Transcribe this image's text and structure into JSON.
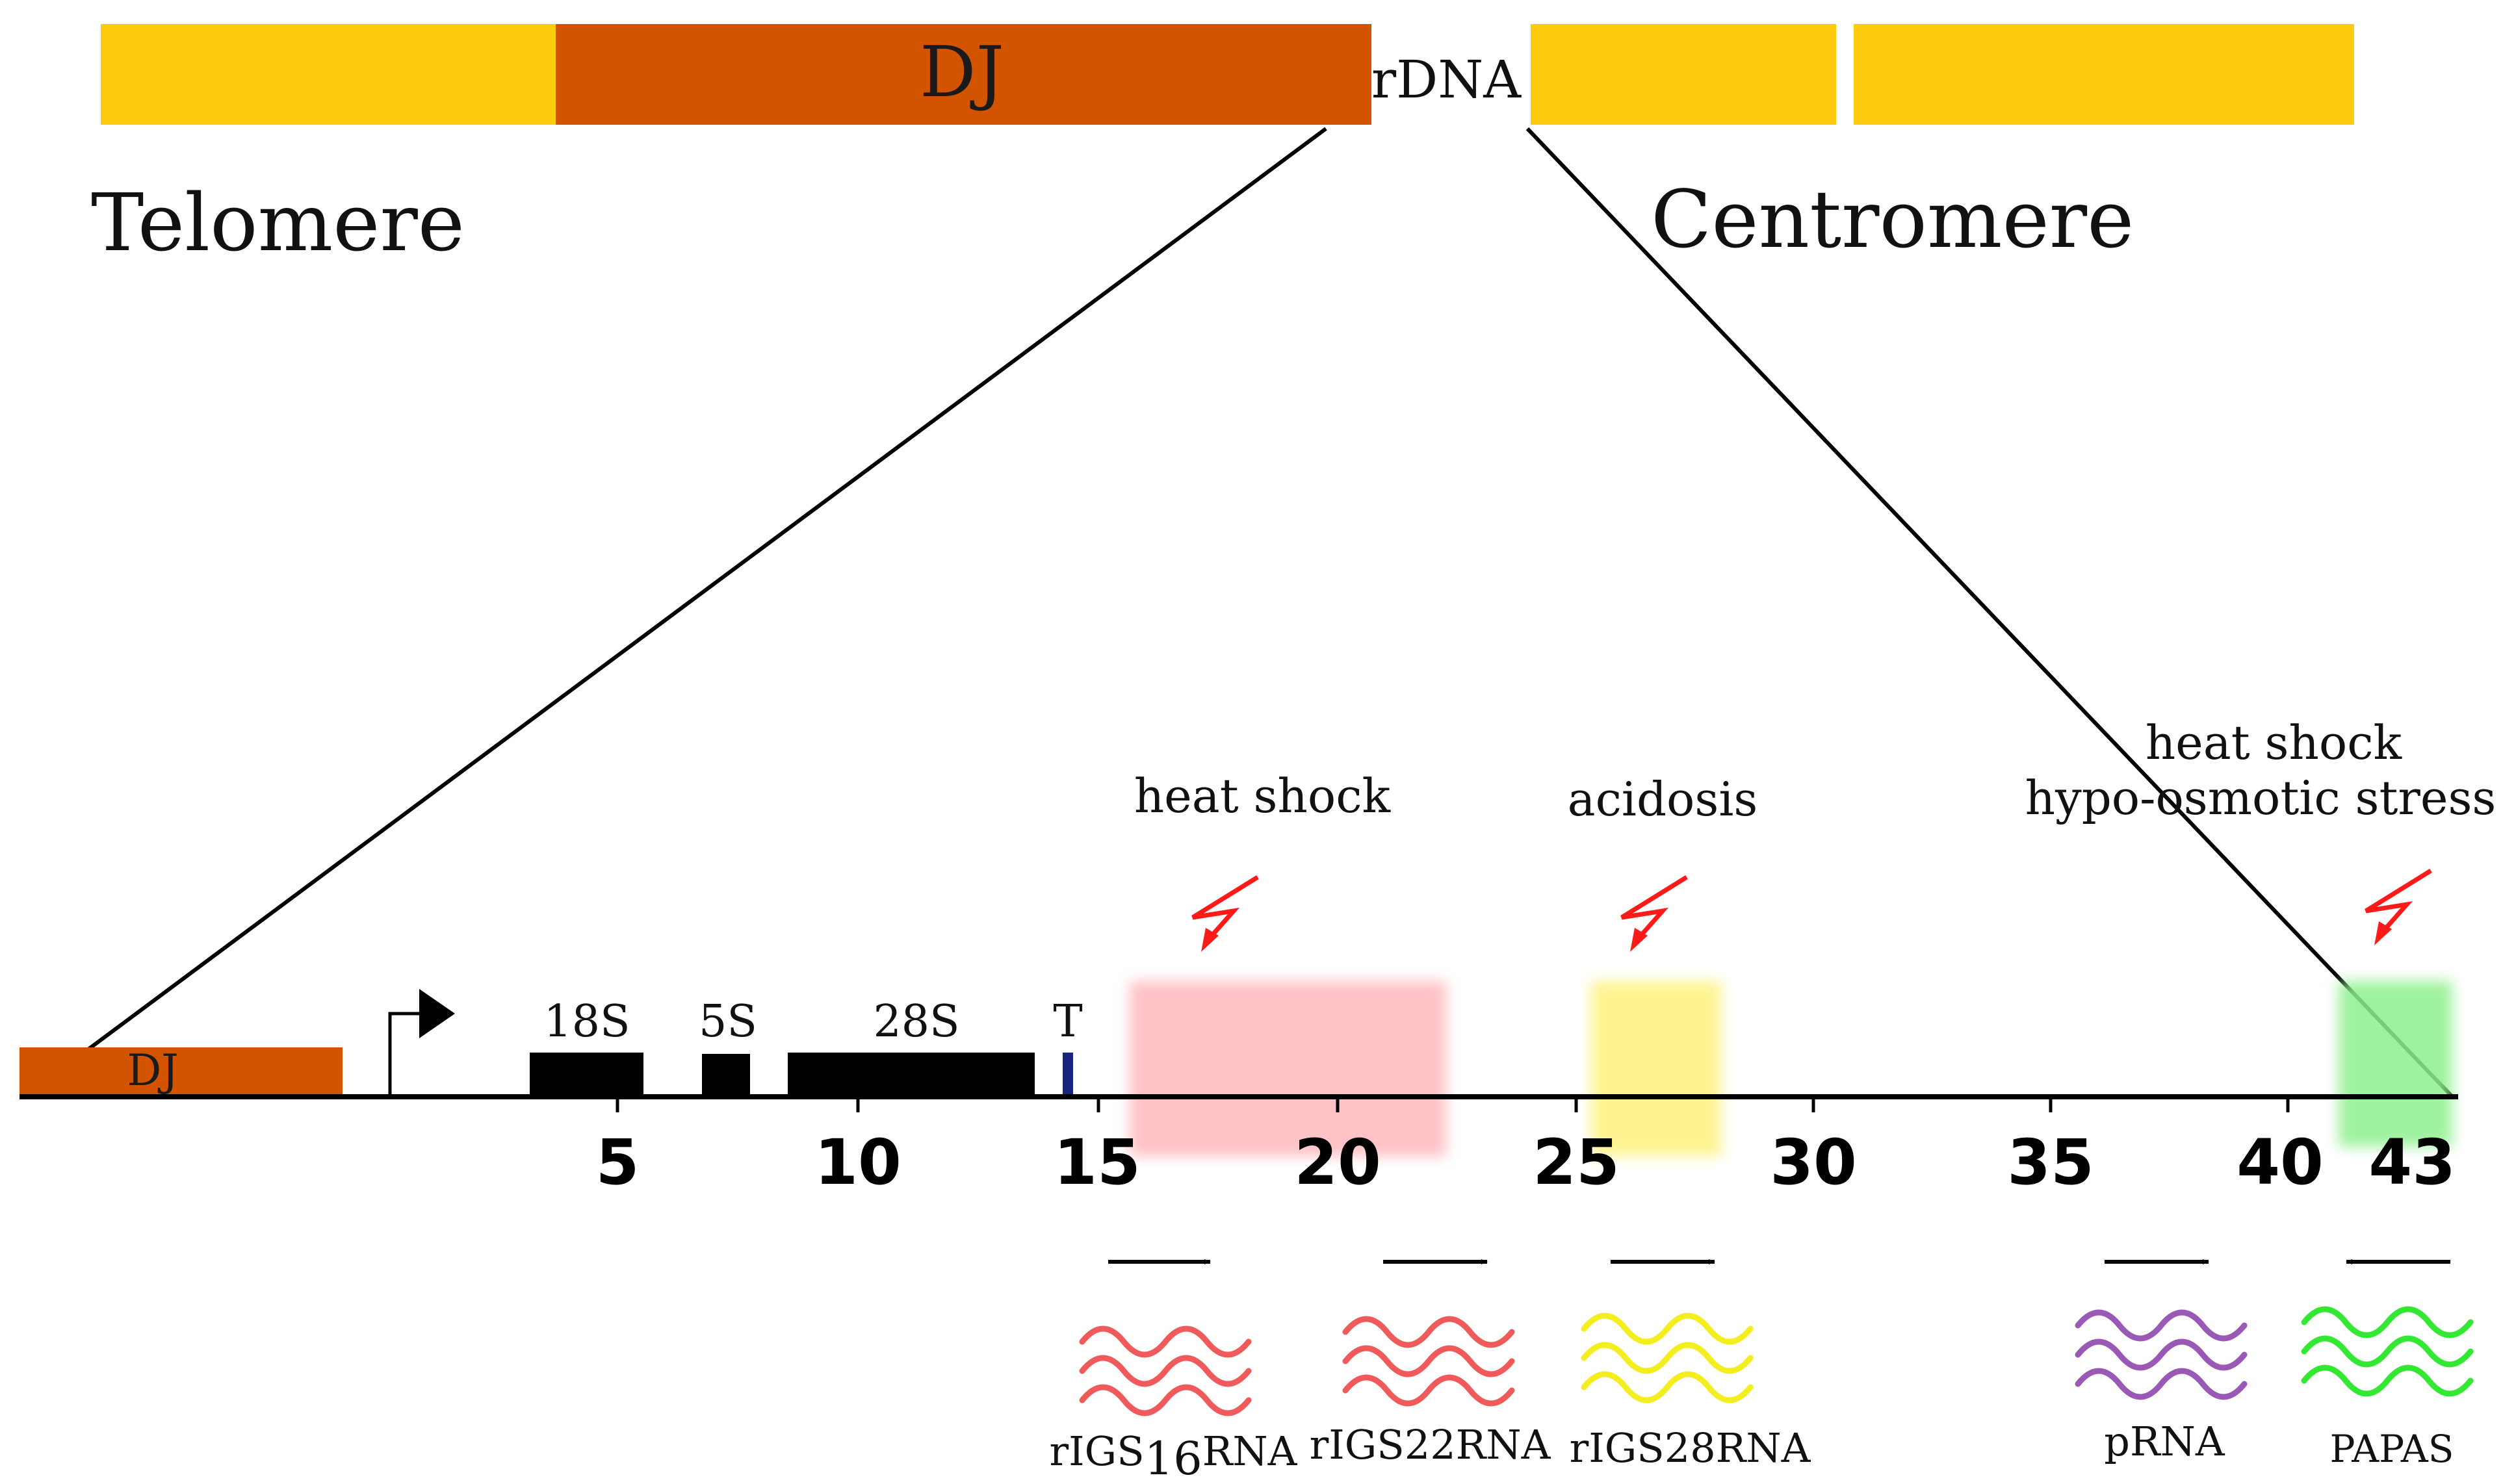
{
  "chromosome": {
    "dj_label": "DJ",
    "rdna_label": "rDNA",
    "telomere_label": "Telomere",
    "centromere_label": "Centromere",
    "colors": {
      "arm": "#FFCB0F",
      "dj": "#D35400",
      "rdna_fill": "#FFFFFF"
    }
  },
  "unit": {
    "dj_label": "DJ",
    "gene_labels": {
      "s18": "18S",
      "s5": "5S",
      "s28": "28S",
      "terminator": "T"
    },
    "ticks": [
      "5",
      "10",
      "15",
      "20",
      "25",
      "30",
      "35",
      "40",
      "43"
    ],
    "scale_kb": {
      "min": 0,
      "max": 43,
      "tick_values": [
        5,
        10,
        15,
        20,
        25,
        30,
        35,
        40,
        43
      ]
    },
    "colors": {
      "genes": "#000000",
      "terminator": "#1A237E"
    }
  },
  "stresses": {
    "heat_shock": "heat shock",
    "acidosis": "acidosis",
    "heat_shock_2": "heat shock",
    "hypo_osmotic": "hypo-osmotic stress",
    "bolt_color": "#FF1A1A"
  },
  "transcripts": {
    "rigs16": {
      "prefix": "rIGS",
      "sub": "16",
      "suffix": "RNA",
      "color": "#F05A5A",
      "direction": "forward"
    },
    "rigs22": {
      "label": "rIGS22RNA",
      "color": "#F05A5A",
      "direction": "forward"
    },
    "rigs28": {
      "label": "rIGS28RNA",
      "color": "#F5EE1E",
      "direction": "forward"
    },
    "prna": {
      "label": "pRNA",
      "color": "#9B59B6",
      "direction": "forward"
    },
    "papas": {
      "label": "PAPAS",
      "color": "#33E833",
      "direction": "reverse"
    }
  },
  "regions": {
    "red": {
      "color": "#FFB3B8"
    },
    "yellow": {
      "color": "#FFF176"
    },
    "green": {
      "color": "#8EF08E"
    }
  }
}
